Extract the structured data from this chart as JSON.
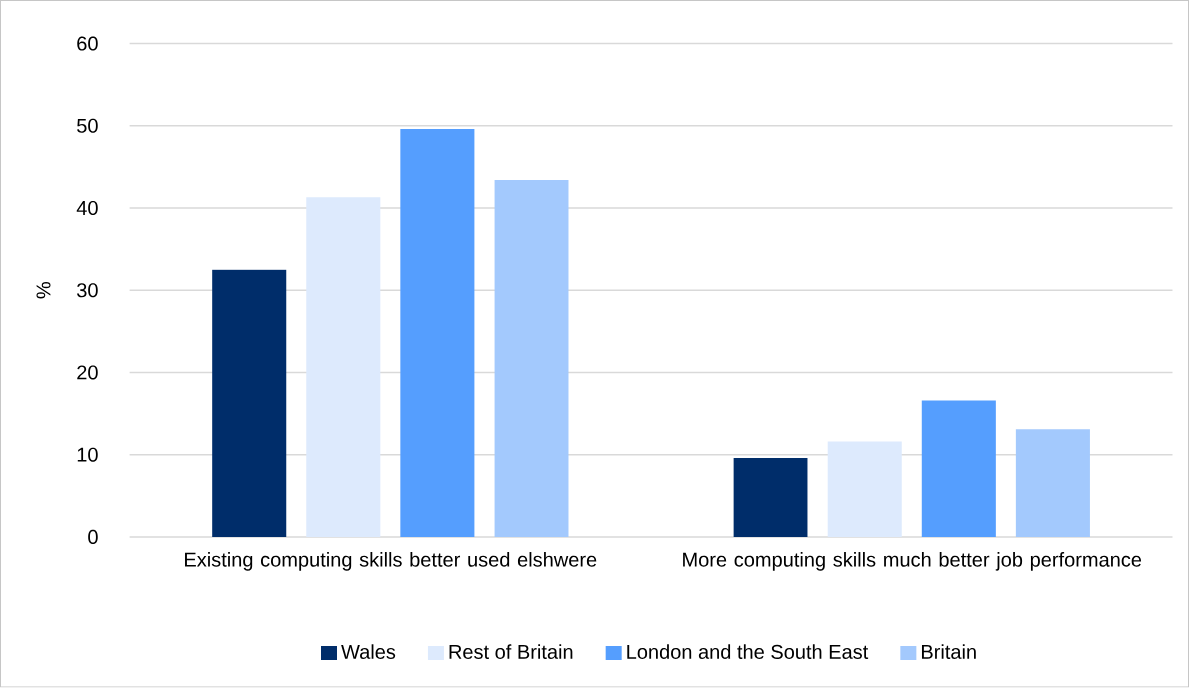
{
  "chart_data": {
    "type": "bar",
    "ylabel": "%",
    "categories": [
      "Existing computing skills better used elshwere",
      "More computing skills much better job performance"
    ],
    "series": [
      {
        "name": "Wales",
        "color": "#002d6a",
        "values": [
          32.5,
          9.6
        ]
      },
      {
        "name": "Rest of Britain",
        "color": "#ddeafd",
        "values": [
          41.3,
          11.6
        ]
      },
      {
        "name": "London and the South East",
        "color": "#559efe",
        "values": [
          49.6,
          16.6
        ]
      },
      {
        "name": "Britain",
        "color": "#a3c9fd",
        "values": [
          43.4,
          13.1
        ]
      }
    ],
    "ylim": [
      0,
      60
    ],
    "yticks": [
      0,
      10,
      20,
      30,
      40,
      50,
      60
    ],
    "grid": "y",
    "legend": "bottom"
  }
}
